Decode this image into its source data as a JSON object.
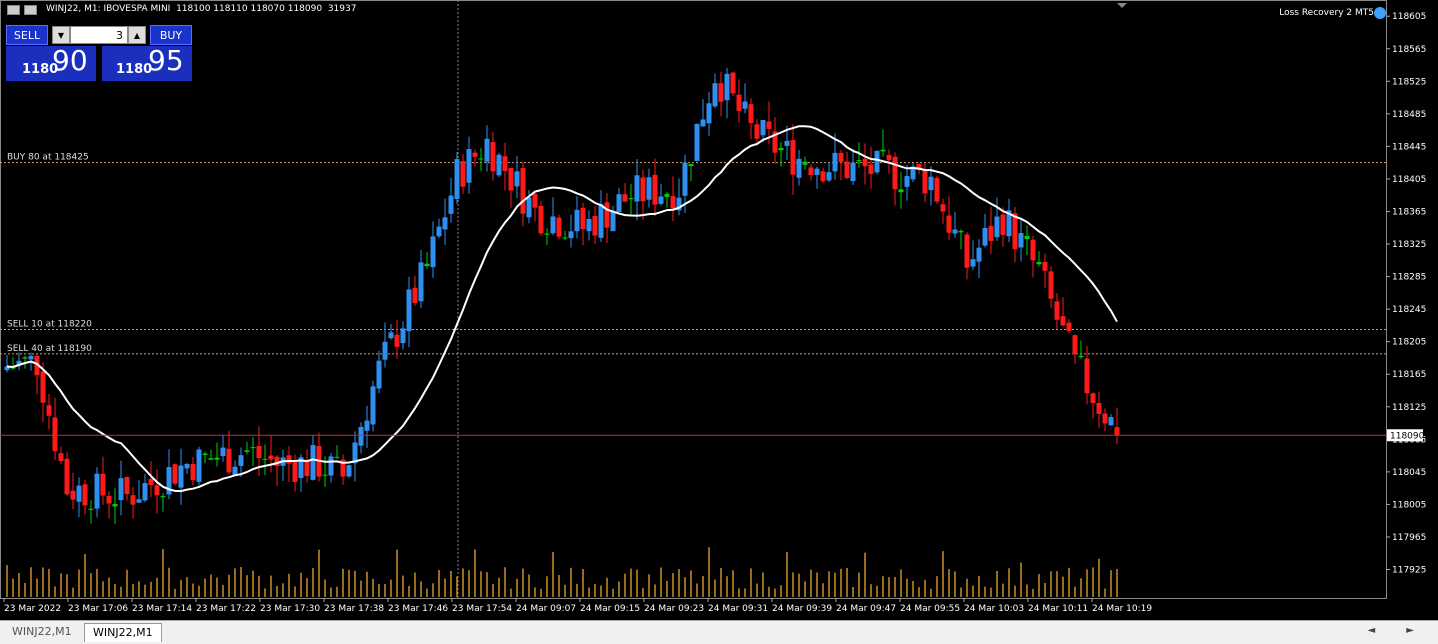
{
  "header": {
    "title": "WINJ22, M1:  IBOVESPA MINI",
    "ohlc": "118100 118110 118070 118090",
    "volume": "31937",
    "ea_name": "Loss Recovery 2 MT5"
  },
  "trade_panel": {
    "sell_label": "SELL",
    "buy_label": "BUY",
    "lot": "3",
    "sell_price_small": "1180",
    "sell_price_big": "90",
    "buy_price_small": "1180",
    "buy_price_big": "95",
    "down_arrow": "▼",
    "up_arrow": "▲"
  },
  "tabs": [
    {
      "label": "WINJ22,M1"
    },
    {
      "label": "WINJ22,M1"
    }
  ],
  "tab_arrows": "◄ ►",
  "colors": {
    "background": "#000000",
    "bull_candle": "#2e8ff0",
    "bear_candle": "#ff1a1a",
    "doji": "#00d000",
    "ma_line": "#ffffff",
    "volume": "#d89b2a",
    "order_line": "#d8a070",
    "current_price_line": "#c03030",
    "grid_cross": "#888888"
  },
  "chart_data": {
    "type": "candlestick",
    "symbol": "WINJ22",
    "timeframe": "M1",
    "ylim": [
      117890,
      118620
    ],
    "y_ticks": [
      118605,
      118565,
      118525,
      118485,
      118445,
      118405,
      118365,
      118325,
      118285,
      118245,
      118205,
      118165,
      118125,
      118085,
      118045,
      118005,
      117965,
      117925
    ],
    "x_ticks": [
      "23 Mar 2022",
      "23 Mar 17:06",
      "23 Mar 17:14",
      "23 Mar 17:22",
      "23 Mar 17:30",
      "23 Mar 17:38",
      "23 Mar 17:46",
      "23 Mar 17:54",
      "24 Mar 09:07",
      "24 Mar 09:15",
      "24 Mar 09:23",
      "24 Mar 09:31",
      "24 Mar 09:39",
      "24 Mar 09:47",
      "24 Mar 09:55",
      "24 Mar 10:03",
      "24 Mar 10:11",
      "24 Mar 10:19"
    ],
    "current_price": 118090,
    "order_lines": [
      {
        "label": "BUY 80 at 118425",
        "price": 118425
      },
      {
        "label": "SELL 10 at 118220",
        "price": 118220
      },
      {
        "label": "SELL 40 at 118190",
        "price": 118190
      }
    ],
    "anchors": [
      [
        0,
        118170,
        118180
      ],
      [
        5,
        118210,
        118150
      ],
      [
        10,
        118020,
        118030
      ],
      [
        20,
        118010,
        118020
      ],
      [
        30,
        118070,
        118040
      ],
      [
        40,
        118060,
        118080
      ],
      [
        45,
        118070,
        118040
      ],
      [
        52,
        118050,
        118060
      ],
      [
        56,
        118040,
        118040
      ],
      [
        62,
        118170,
        118170
      ],
      [
        70,
        118340,
        118250
      ],
      [
        75,
        118400,
        118420
      ],
      [
        80,
        118440,
        118460
      ],
      [
        88,
        118360,
        118370
      ],
      [
        96,
        118330,
        118360
      ],
      [
        104,
        118380,
        118390
      ],
      [
        112,
        118380,
        118410
      ],
      [
        118,
        118530,
        118540
      ],
      [
        124,
        118460,
        118470
      ],
      [
        130,
        118440,
        118430
      ],
      [
        138,
        118410,
        118430
      ],
      [
        146,
        118410,
        118420
      ],
      [
        154,
        118400,
        118410
      ],
      [
        160,
        118290,
        118310
      ],
      [
        166,
        118360,
        118360
      ],
      [
        172,
        118290,
        118290
      ],
      [
        178,
        118170,
        118180
      ],
      [
        185,
        118100,
        118090
      ]
    ]
  }
}
